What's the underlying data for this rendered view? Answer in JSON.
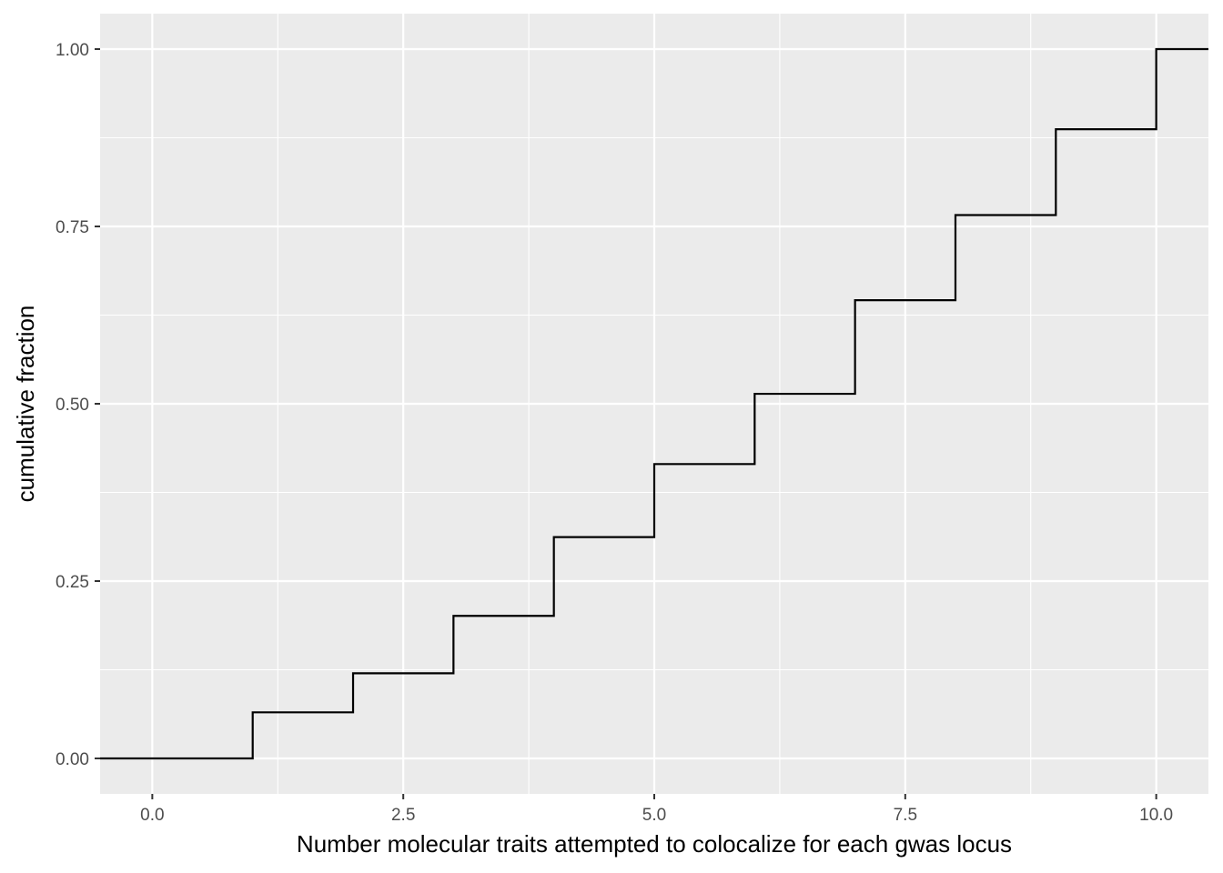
{
  "chart_data": {
    "type": "line",
    "subtype": "step-ecdf",
    "title": "",
    "xlabel": "Number molecular traits attempted to colocalize for each gwas locus",
    "ylabel": "cumulative fraction",
    "xlim": [
      -0.52,
      10.52
    ],
    "ylim": [
      -0.05,
      1.05
    ],
    "x_ticks": [
      0,
      2.5,
      5,
      7.5,
      10
    ],
    "x_tick_labels": [
      "0.0",
      "2.5",
      "5.0",
      "7.5",
      "10.0"
    ],
    "y_ticks": [
      0,
      0.25,
      0.5,
      0.75,
      1
    ],
    "y_tick_labels": [
      "0.00",
      "0.25",
      "0.50",
      "0.75",
      "1.00"
    ],
    "grid": true,
    "panel_background": "#ebebeb",
    "grid_color": "#ffffff",
    "line_color": "#000000",
    "x": [
      0,
      1,
      2,
      3,
      4,
      5,
      6,
      7,
      8,
      9,
      10
    ],
    "y": [
      0.0,
      0.065,
      0.12,
      0.201,
      0.312,
      0.415,
      0.514,
      0.646,
      0.766,
      0.887,
      1.0
    ]
  }
}
